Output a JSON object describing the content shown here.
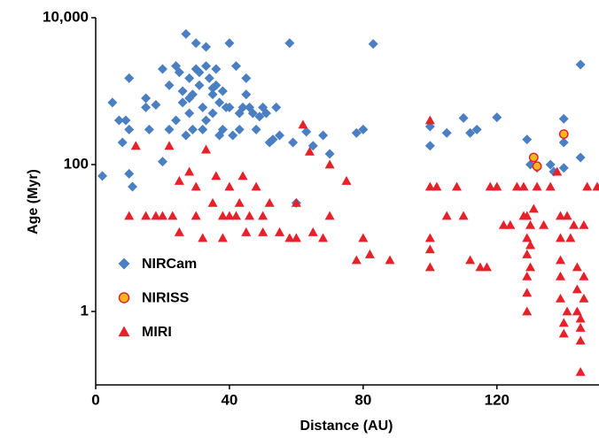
{
  "chart_data": {
    "type": "scatter",
    "x_label": "Distance (AU)",
    "y_label": "Age (Myr)",
    "xlim": [
      0,
      150
    ],
    "xticks": [
      0,
      40,
      80,
      120
    ],
    "ylim": [
      0.1,
      10000
    ],
    "yticks": [
      1,
      100,
      {
        "value": 10000,
        "label": "10,000"
      }
    ],
    "y_scale": "log",
    "grid": false,
    "legend": "lower left",
    "series": [
      {
        "name": "NIRCam",
        "color": "#4a7fc1",
        "marker": "diamond",
        "x": [
          2,
          5,
          7,
          8,
          9,
          10,
          10,
          10,
          11,
          15,
          15,
          16,
          18,
          20,
          20,
          22,
          22,
          24,
          25,
          26,
          27,
          28,
          28,
          28,
          29,
          30,
          30,
          31,
          32,
          32,
          33,
          33,
          34,
          35,
          35,
          36,
          36,
          37,
          38,
          38,
          40,
          40,
          42,
          43,
          44,
          45,
          45,
          46,
          48,
          50,
          52,
          54,
          55,
          58,
          59,
          60,
          63,
          65,
          68,
          70,
          78,
          80,
          83,
          100,
          100,
          105,
          110,
          112,
          114,
          120,
          129,
          130,
          132,
          136,
          137,
          140,
          140,
          140,
          145,
          145,
          24,
          26,
          27,
          29,
          31,
          33,
          35,
          37,
          39,
          41,
          43,
          47,
          49,
          51,
          53
        ],
        "values": [
          70,
          700,
          400,
          200,
          400,
          1500,
          300,
          75,
          50,
          800,
          600,
          300,
          650,
          2000,
          110,
          1200,
          300,
          2200,
          1800,
          1000,
          6000,
          1500,
          800,
          500,
          300,
          2000,
          4500,
          1200,
          600,
          300,
          2200,
          4000,
          1500,
          900,
          500,
          2000,
          1200,
          700,
          300,
          1000,
          4500,
          600,
          2200,
          300,
          600,
          1500,
          900,
          600,
          300,
          600,
          200,
          600,
          250,
          4500,
          200,
          30,
          280,
          180,
          250,
          140,
          270,
          300,
          4400,
          180,
          330,
          270,
          430,
          270,
          300,
          440,
          220,
          100,
          90,
          100,
          80,
          420,
          200,
          90,
          2300,
          125,
          400,
          700,
          250,
          900,
          1800,
          400,
          1100,
          250,
          600,
          250,
          500,
          500,
          450,
          500,
          220
        ]
      },
      {
        "name": "NIRISS",
        "color": "#f5b820",
        "edge": "#e8202a",
        "marker": "circle",
        "x": [
          131,
          132,
          140
        ],
        "values": [
          125,
          95,
          260
        ]
      },
      {
        "name": "MIRI",
        "color": "#e8202a",
        "marker": "triangle",
        "x": [
          10,
          12,
          15,
          18,
          20,
          22,
          23,
          25,
          25,
          28,
          30,
          30,
          32,
          33,
          35,
          36,
          38,
          38,
          40,
          40,
          42,
          43,
          44,
          45,
          46,
          48,
          50,
          50,
          52,
          55,
          58,
          60,
          60,
          62,
          64,
          65,
          68,
          70,
          70,
          75,
          78,
          80,
          82,
          88,
          100,
          100,
          100,
          100,
          100,
          102,
          105,
          108,
          110,
          112,
          115,
          117,
          118,
          120,
          122,
          124,
          126,
          128,
          128,
          129,
          129,
          129,
          129,
          129,
          129,
          130,
          130,
          130,
          131,
          132,
          134,
          136,
          138,
          139,
          139,
          139,
          139,
          139,
          140,
          140,
          141,
          141,
          142,
          143,
          144,
          144,
          144,
          145,
          145,
          145,
          145,
          146,
          146,
          146,
          147,
          150
        ],
        "values": [
          20,
          180,
          20,
          20,
          20,
          180,
          20,
          12,
          60,
          80,
          20,
          50,
          10,
          160,
          30,
          70,
          20,
          10,
          20,
          50,
          20,
          30,
          70,
          12,
          20,
          50,
          20,
          12,
          30,
          12,
          10,
          10,
          30,
          350,
          150,
          12,
          10,
          20,
          100,
          60,
          5,
          10,
          6,
          5,
          400,
          50,
          10,
          7,
          4,
          50,
          20,
          50,
          20,
          5,
          4,
          4,
          50,
          50,
          15,
          15,
          50,
          20,
          50,
          20,
          10,
          6,
          3,
          1.8,
          1,
          15,
          8,
          4,
          25,
          50,
          15,
          50,
          80,
          20,
          10,
          5,
          3,
          1.5,
          0.7,
          0.5,
          1,
          20,
          10,
          15,
          4,
          2,
          1,
          0.8,
          0.6,
          0.4,
          0.15,
          15,
          3,
          1.5,
          50,
          50
        ]
      }
    ]
  }
}
